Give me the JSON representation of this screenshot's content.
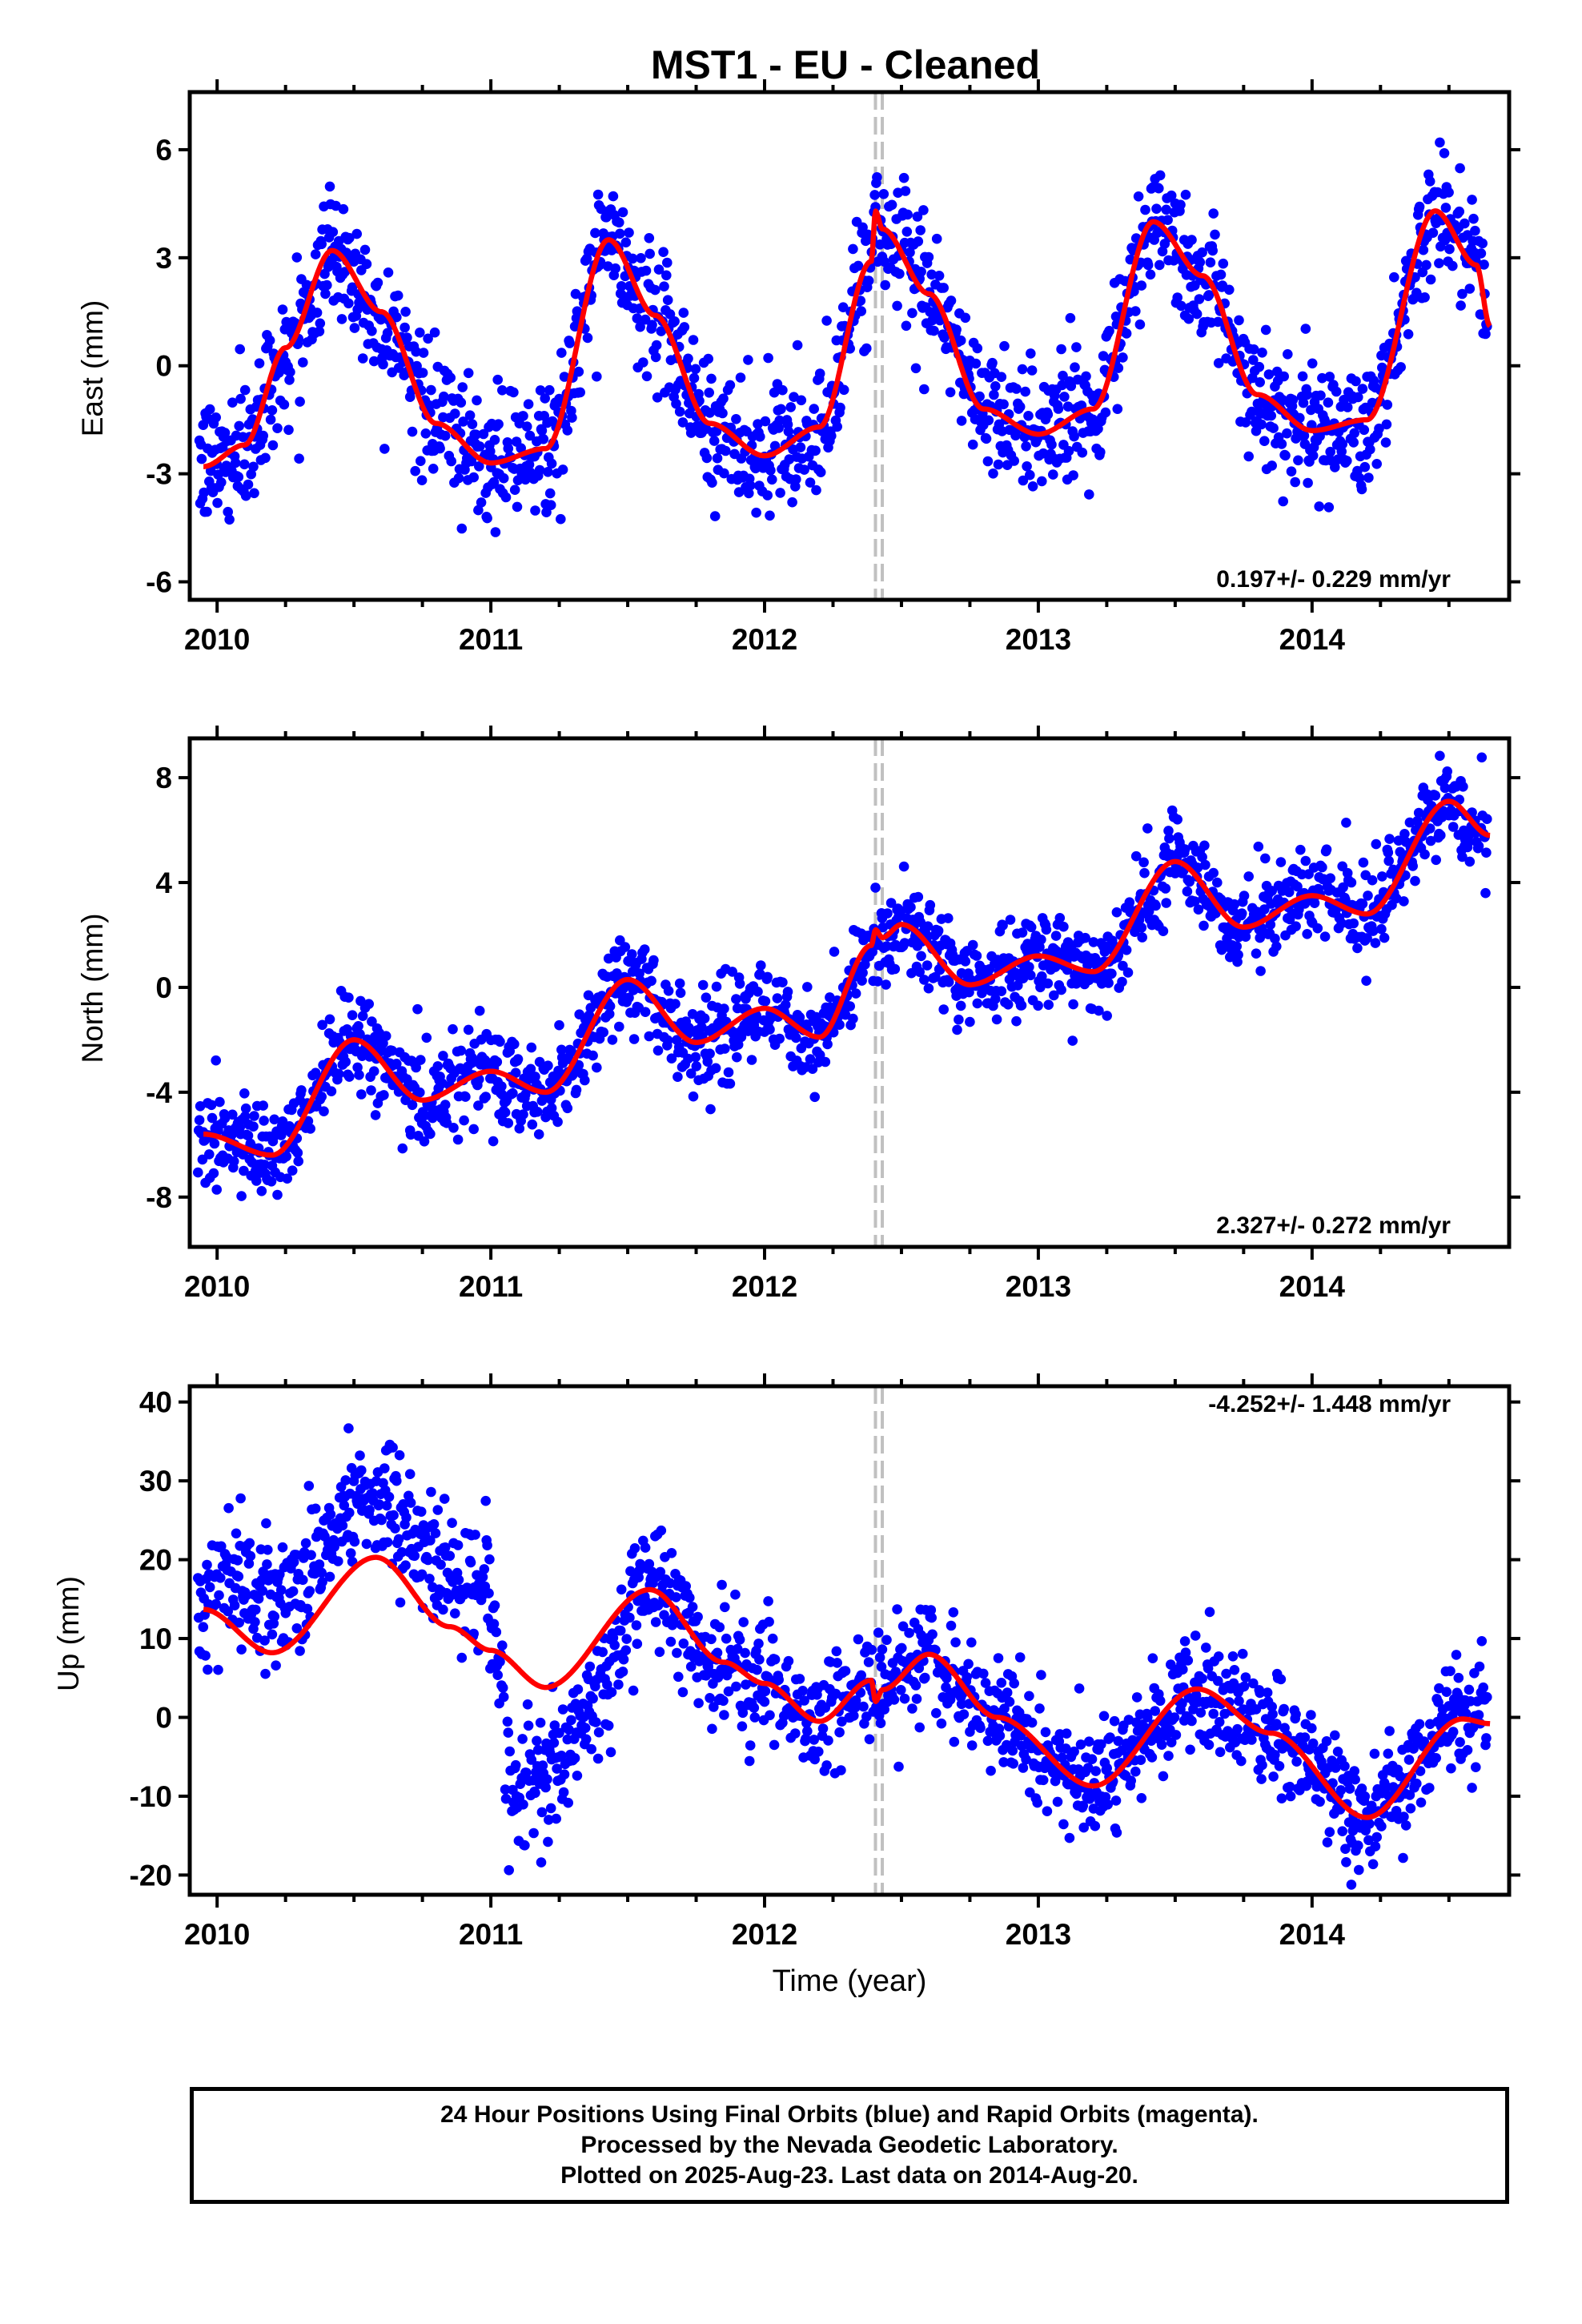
{
  "title": "MST1  - EU - Cleaned",
  "colors": {
    "points": "#0000ff",
    "fit": "#ff0000",
    "offset_line": "#c0c0c0",
    "axes": "#000000"
  },
  "x_axis": {
    "label": "Time (year)",
    "range": [
      2009.9,
      2014.72
    ],
    "ticks": [
      "2010",
      "2011",
      "2012",
      "2013",
      "2014"
    ]
  },
  "offset_epochs": [
    2012.405,
    2012.43
  ],
  "chart_data": [
    {
      "type": "scatter",
      "panel": "east",
      "ylabel": "East (mm)",
      "ylim": [
        -6.5,
        7.6
      ],
      "yticks": [
        6,
        3,
        0,
        -3,
        -6
      ],
      "rate_text": "0.197+/- 0.229 mm/yr",
      "rate_position": "bottom-right",
      "series": [
        {
          "kind": "points",
          "model": {
            "trend": 0.197,
            "intercept": 0.8,
            "annual_amp": 3.0,
            "annual_peak": 0.45,
            "noise": 0.9
          }
        },
        {
          "kind": "fit",
          "x": [
            2009.95,
            2010.1,
            2010.25,
            2010.42,
            2010.6,
            2010.8,
            2011.0,
            2011.2,
            2011.43,
            2011.6,
            2011.8,
            2012.0,
            2012.2,
            2012.39,
            2012.405,
            2012.43,
            2012.6,
            2012.8,
            2013.0,
            2013.2,
            2013.42,
            2013.6,
            2013.8,
            2014.0,
            2014.2,
            2014.45,
            2014.6,
            2014.65
          ],
          "y": [
            -2.8,
            -2.2,
            0.5,
            3.2,
            1.5,
            -1.6,
            -2.7,
            -2.3,
            3.5,
            1.4,
            -1.6,
            -2.5,
            -1.7,
            2.9,
            4.3,
            3.8,
            2.0,
            -1.2,
            -1.9,
            -1.2,
            4.0,
            2.5,
            -0.8,
            -1.8,
            -1.5,
            4.3,
            2.8,
            1.1
          ]
        }
      ]
    },
    {
      "type": "scatter",
      "panel": "north",
      "ylabel": "North (mm)",
      "ylim": [
        -9.9,
        9.5
      ],
      "yticks": [
        8,
        4,
        0,
        -4,
        -8
      ],
      "rate_text": "2.327+/- 0.272 mm/yr",
      "rate_position": "bottom-right",
      "series": [
        {
          "kind": "points",
          "model": {
            "trend": 2.327,
            "intercept": -5.9,
            "annual_amp": 1.3,
            "annual_peak": 0.5,
            "noise": 0.9
          }
        },
        {
          "kind": "fit",
          "x": [
            2009.95,
            2010.2,
            2010.5,
            2010.75,
            2011.0,
            2011.2,
            2011.5,
            2011.75,
            2012.0,
            2012.2,
            2012.39,
            2012.405,
            2012.43,
            2012.5,
            2012.75,
            2013.0,
            2013.2,
            2013.5,
            2013.75,
            2014.0,
            2014.2,
            2014.5,
            2014.65
          ],
          "y": [
            -5.6,
            -6.4,
            -2.0,
            -4.3,
            -3.2,
            -4.0,
            0.3,
            -2.1,
            -0.8,
            -1.9,
            1.6,
            2.2,
            1.9,
            2.4,
            0.1,
            1.2,
            0.6,
            4.8,
            2.3,
            3.5,
            2.8,
            7.1,
            5.8
          ]
        }
      ]
    },
    {
      "type": "scatter",
      "panel": "up",
      "ylabel": "Up (mm)",
      "ylim": [
        -22.5,
        42
      ],
      "yticks": [
        40,
        30,
        20,
        10,
        0,
        -10,
        -20
      ],
      "rate_text": "-4.252+/- 1.448 mm/yr",
      "rate_position": "top-right",
      "series": [
        {
          "kind": "points",
          "model": {
            "trend": -4.252,
            "intercept": 20,
            "annual_amp": 8.0,
            "annual_peak": 0.6,
            "noise": 3.5
          }
        },
        {
          "kind": "fit",
          "x": [
            2009.95,
            2010.2,
            2010.58,
            2010.85,
            2011.0,
            2011.2,
            2011.58,
            2011.85,
            2012.0,
            2012.2,
            2012.39,
            2012.405,
            2012.43,
            2012.6,
            2012.85,
            2013.2,
            2013.58,
            2013.85,
            2014.2,
            2014.55,
            2014.65
          ],
          "y": [
            13.7,
            8.2,
            20.3,
            11.5,
            8.5,
            3.8,
            16.2,
            7.0,
            4.3,
            -0.5,
            4.7,
            2.0,
            3.5,
            8.0,
            0.0,
            -8.7,
            3.6,
            -2.0,
            -12.7,
            -0.2,
            -0.8
          ]
        }
      ]
    }
  ],
  "footer": {
    "line1": "24 Hour Positions Using Final Orbits (blue) and Rapid Orbits (magenta).",
    "line2": "Processed by the Nevada Geodetic Laboratory.",
    "line3": "Plotted on 2025-Aug-23. Last data on 2014-Aug-20."
  }
}
